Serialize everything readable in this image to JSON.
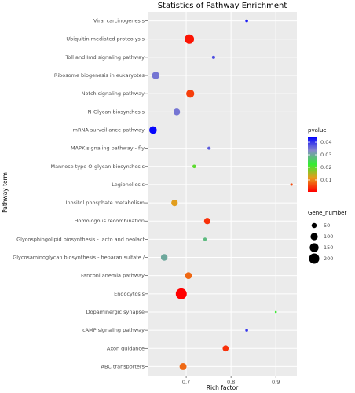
{
  "chart_data": {
    "type": "bubble",
    "title": "Statistics of Pathway Enrichment",
    "x_label": "Rich factor",
    "y_label": "Pathway term",
    "categories": [
      "Viral carcinogenesis",
      "Ubiquitin mediated proteolysis",
      "Toll and Imd signaling pathway",
      "Ribosome biogenesis in eukaryotes",
      "Notch signaling pathway",
      "N-Glycan biosynthesis",
      "mRNA surveillance pathway",
      "MAPK signaling pathway - fly",
      "Mannose type O-glycan biosynthesis",
      "Legionellosis",
      "Inositol phosphate metabolism",
      "Homologous recombination",
      "Glycosphingolipid biosynthesis - lacto and neolact",
      "Glycosaminoglycan biosynthesis - heparan sulfate /",
      "Fanconi anemia pathway",
      "Endocytosis",
      "Dopaminergic synapse",
      "cAMP signaling pathway",
      "Axon guidance",
      "ABC transporters"
    ],
    "values": [
      0.835,
      0.707,
      0.761,
      0.632,
      0.709,
      0.679,
      0.626,
      0.751,
      0.718,
      0.935,
      0.674,
      0.747,
      0.742,
      0.651,
      0.705,
      0.689,
      0.9,
      0.835,
      0.788,
      0.693
    ],
    "sizes": [
      15,
      170,
      20,
      110,
      125,
      85,
      110,
      20,
      25,
      12,
      80,
      80,
      22,
      85,
      90,
      230,
      8,
      15,
      70,
      95
    ],
    "pvalues": [
      0.042,
      0.002,
      0.038,
      0.035,
      0.005,
      0.035,
      0.044,
      0.037,
      0.02,
      0.006,
      0.012,
      0.004,
      0.028,
      0.03,
      0.008,
      0.0006,
      0.022,
      0.04,
      0.004,
      0.008
    ],
    "xlim": [
      0.614,
      0.947
    ],
    "xticks": [
      0.7,
      0.8,
      0.9
    ],
    "grid": true,
    "color_title": "pvalue",
    "colorlim": [
      0.0006,
      0.0444
    ],
    "colorticks": [
      0.01,
      0.02,
      0.03,
      0.04
    ],
    "color_scale": [
      "#ff0000",
      "#e89a1c",
      "#33ee33",
      "#8888cc",
      "#0000ff"
    ],
    "size_title": "Gene_number",
    "sizeticks": [
      50,
      100,
      150,
      200
    ],
    "point_color": "#000000"
  }
}
